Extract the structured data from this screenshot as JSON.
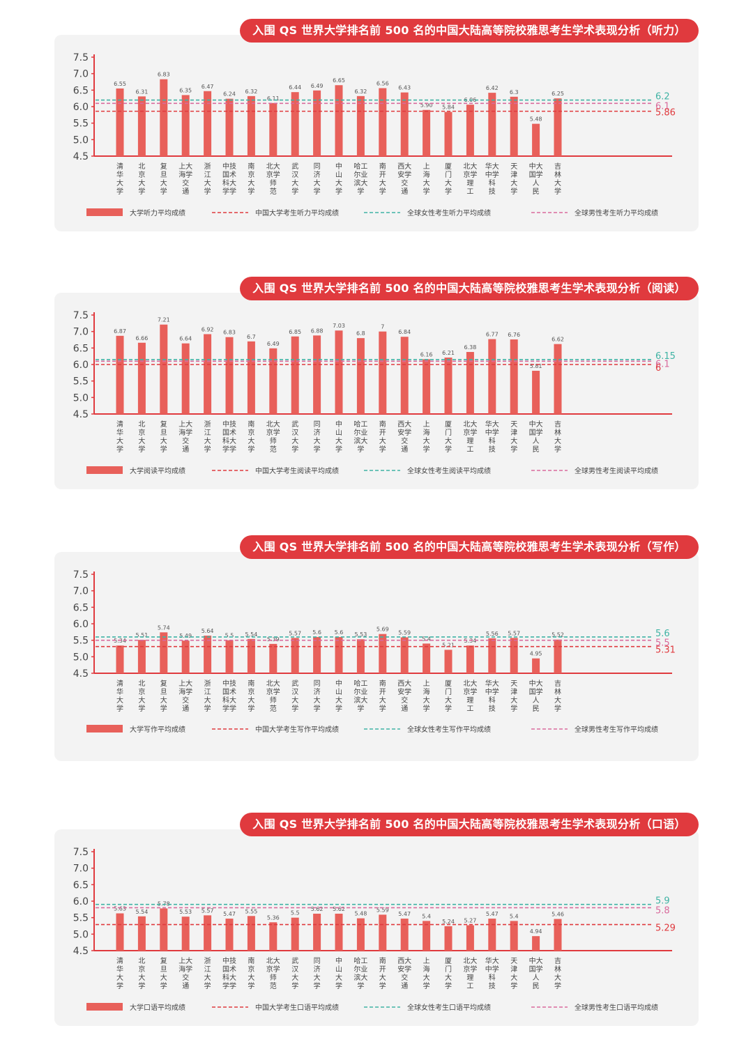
{
  "colors": {
    "bar": "#e8605a",
    "china": "#e03a3e",
    "female": "#3fb3a4",
    "male": "#d96a9c",
    "axis": "#e03a3e"
  },
  "categories": [
    [
      "清",
      "华",
      "大",
      "学"
    ],
    [
      "北",
      "京",
      "大",
      "学"
    ],
    [
      "复",
      "旦",
      "大",
      "学"
    ],
    [
      "上大",
      "海学",
      "交",
      "通"
    ],
    [
      "浙",
      "江",
      "大",
      "学"
    ],
    [
      "中技",
      "国术",
      "科大",
      "学学"
    ],
    [
      "南",
      "京",
      "大",
      "学"
    ],
    [
      "北大",
      "京学",
      "师",
      "范"
    ],
    [
      "武",
      "汉",
      "大",
      "学"
    ],
    [
      "同",
      "济",
      "大",
      "学"
    ],
    [
      "中",
      "山",
      "大",
      "学"
    ],
    [
      "哈工",
      "尔业",
      "滨大",
      "学"
    ],
    [
      "南",
      "开",
      "大",
      "学"
    ],
    [
      "西大",
      "安学",
      "交",
      "通"
    ],
    [
      "上",
      "海",
      "大",
      "学"
    ],
    [
      "厦",
      "门",
      "大",
      "学"
    ],
    [
      "北大",
      "京学",
      "理",
      "工"
    ],
    [
      "华大",
      "中学",
      "科",
      "技"
    ],
    [
      "天",
      "津",
      "大",
      "学"
    ],
    [
      "中大",
      "国学",
      "人",
      "民"
    ],
    [
      "吉",
      "林",
      "大",
      "学"
    ]
  ],
  "chart_data": [
    {
      "type": "bar",
      "title": "入围 QS 世界大学排名前 500 名的中国大陆高等院校雅思考生学术表现分析（听力）",
      "y_ticks": [
        "7.5",
        "7.0",
        "6.5",
        "6.0",
        "5.5",
        "5.0",
        "4.5"
      ],
      "ylim": [
        4.5,
        7.5
      ],
      "values": [
        6.55,
        6.31,
        6.83,
        6.35,
        6.47,
        6.24,
        6.32,
        6.11,
        6.44,
        6.49,
        6.65,
        6.32,
        6.56,
        6.43,
        5.9,
        5.84,
        6.06,
        6.42,
        6.3,
        5.48,
        6.25
      ],
      "value_labels": [
        "6.55",
        "6.31",
        "6.83",
        "6.35",
        "6.47",
        "6.24",
        "6.32",
        "6.11",
        "6.44",
        "6.49",
        "6.65",
        "6.32",
        "6.56",
        "6.43",
        "5.90",
        "5.84",
        "6.06",
        "6.42",
        "6.3",
        "5.48",
        "6.25"
      ],
      "reference_lines": [
        {
          "name": "全球女性考生听力平均成绩",
          "value": 6.2,
          "label": "6.2",
          "color": "#3fb3a4"
        },
        {
          "name": "全球男性考生听力平均成绩",
          "value": 6.1,
          "label": "6.1",
          "color": "#d96a9c"
        },
        {
          "name": "中国大学考生听力平均成绩",
          "value": 5.86,
          "label": "5.86",
          "color": "#e03a3e"
        }
      ],
      "legend": [
        "大学听力平均成绩",
        "中国大学考生听力平均成绩",
        "全球女性考生听力平均成绩",
        "全球男性考生听力平均成绩"
      ]
    },
    {
      "type": "bar",
      "title": "入围 QS 世界大学排名前 500 名的中国大陆高等院校雅思考生学术表现分析（阅读）",
      "y_ticks": [
        "7.5",
        "7.0",
        "6.5",
        "6.0",
        "5.5",
        "5.0",
        "4.5"
      ],
      "ylim": [
        4.5,
        7.5
      ],
      "values": [
        6.87,
        6.66,
        7.21,
        6.64,
        6.92,
        6.83,
        6.7,
        6.49,
        6.85,
        6.88,
        7.03,
        6.8,
        7,
        6.84,
        6.16,
        6.21,
        6.38,
        6.77,
        6.76,
        5.81,
        6.62
      ],
      "value_labels": [
        "6.87",
        "6.66",
        "7.21",
        "6.64",
        "6.92",
        "6.83",
        "6.7",
        "6.49",
        "6.85",
        "6.88",
        "7.03",
        "6.8",
        "7",
        "6.84",
        "6.16",
        "6.21",
        "6.38",
        "6.77",
        "6.76",
        "5.81",
        "6.62"
      ],
      "reference_lines": [
        {
          "name": "全球女性考生阅读平均成绩",
          "value": 6.15,
          "label": "6.15",
          "color": "#3fb3a4"
        },
        {
          "name": "全球男性考生阅读平均成绩",
          "value": 6.1,
          "label": "6.1",
          "color": "#d96a9c"
        },
        {
          "name": "中国大学考生阅读平均成绩",
          "value": 6.0,
          "label": "6",
          "color": "#e03a3e"
        }
      ],
      "legend": [
        "大学阅读平均成绩",
        "中国大学考生阅读平均成绩",
        "全球女性考生阅读平均成绩",
        "全球男性考生阅读平均成绩"
      ]
    },
    {
      "type": "bar",
      "title": "入围 QS 世界大学排名前 500 名的中国大陆高等院校雅思考生学术表现分析（写作）",
      "y_ticks": [
        "7.5",
        "7.0",
        "6.5",
        "6.0",
        "5.5",
        "5.0",
        "4.5"
      ],
      "ylim": [
        4.5,
        7.5
      ],
      "values": [
        5.34,
        5.51,
        5.74,
        5.49,
        5.64,
        5.5,
        5.54,
        5.39,
        5.57,
        5.6,
        5.6,
        5.53,
        5.69,
        5.59,
        5.4,
        5.21,
        5.34,
        5.56,
        5.57,
        4.95,
        5.52
      ],
      "value_labels": [
        "5.34",
        "5.51",
        "5.74",
        "5.49",
        "5.64",
        "5.5",
        "5.54",
        "5.39",
        "5.57",
        "5.6",
        "5.6",
        "5.53",
        "5.69",
        "5.59",
        "5.4",
        "5.21",
        "5.34",
        "5.56",
        "5.57",
        "4.95",
        "5.52"
      ],
      "reference_lines": [
        {
          "name": "全球女性考生写作平均成绩",
          "value": 5.6,
          "label": "5.6",
          "color": "#3fb3a4"
        },
        {
          "name": "全球男性考生写作平均成绩",
          "value": 5.5,
          "label": "5.5",
          "color": "#d96a9c"
        },
        {
          "name": "中国大学考生写作平均成绩",
          "value": 5.31,
          "label": "5.31",
          "color": "#e03a3e"
        }
      ],
      "legend": [
        "大学写作平均成绩",
        "中国大学考生写作平均成绩",
        "全球女性考生写作平均成绩",
        "全球男性考生写作平均成绩"
      ]
    },
    {
      "type": "bar",
      "title": "入围 QS 世界大学排名前 500 名的中国大陆高等院校雅思考生学术表现分析（口语）",
      "y_ticks": [
        "7.5",
        "7.0",
        "6.5",
        "6.0",
        "5.5",
        "5.0",
        "4.5"
      ],
      "ylim": [
        4.5,
        7.5
      ],
      "values": [
        5.63,
        5.54,
        5.78,
        5.53,
        5.57,
        5.47,
        5.55,
        5.36,
        5.5,
        5.62,
        5.62,
        5.48,
        5.59,
        5.47,
        5.4,
        5.24,
        5.27,
        5.47,
        5.4,
        4.94,
        5.46
      ],
      "value_labels": [
        "5.63",
        "5.54",
        "5.78",
        "5.53",
        "5.57",
        "5.47",
        "5.55",
        "5.36",
        "5.5",
        "5.62",
        "5.62",
        "5.48",
        "5.59",
        "5.47",
        "5.4",
        "5.24",
        "5.27",
        "5.47",
        "5.4",
        "4.94",
        "5.46"
      ],
      "reference_lines": [
        {
          "name": "全球女性考生口语平均成绩",
          "value": 5.9,
          "label": "5.9",
          "color": "#3fb3a4"
        },
        {
          "name": "全球男性考生口语平均成绩",
          "value": 5.8,
          "label": "5.8",
          "color": "#d96a9c"
        },
        {
          "name": "中国大学考生口语平均成绩",
          "value": 5.29,
          "label": "5.29",
          "color": "#e03a3e"
        }
      ],
      "legend": [
        "大学口语平均成绩",
        "中国大学考生口语平均成绩",
        "全球女性考生口语平均成绩",
        "全球男性考生口语平均成绩"
      ]
    }
  ]
}
